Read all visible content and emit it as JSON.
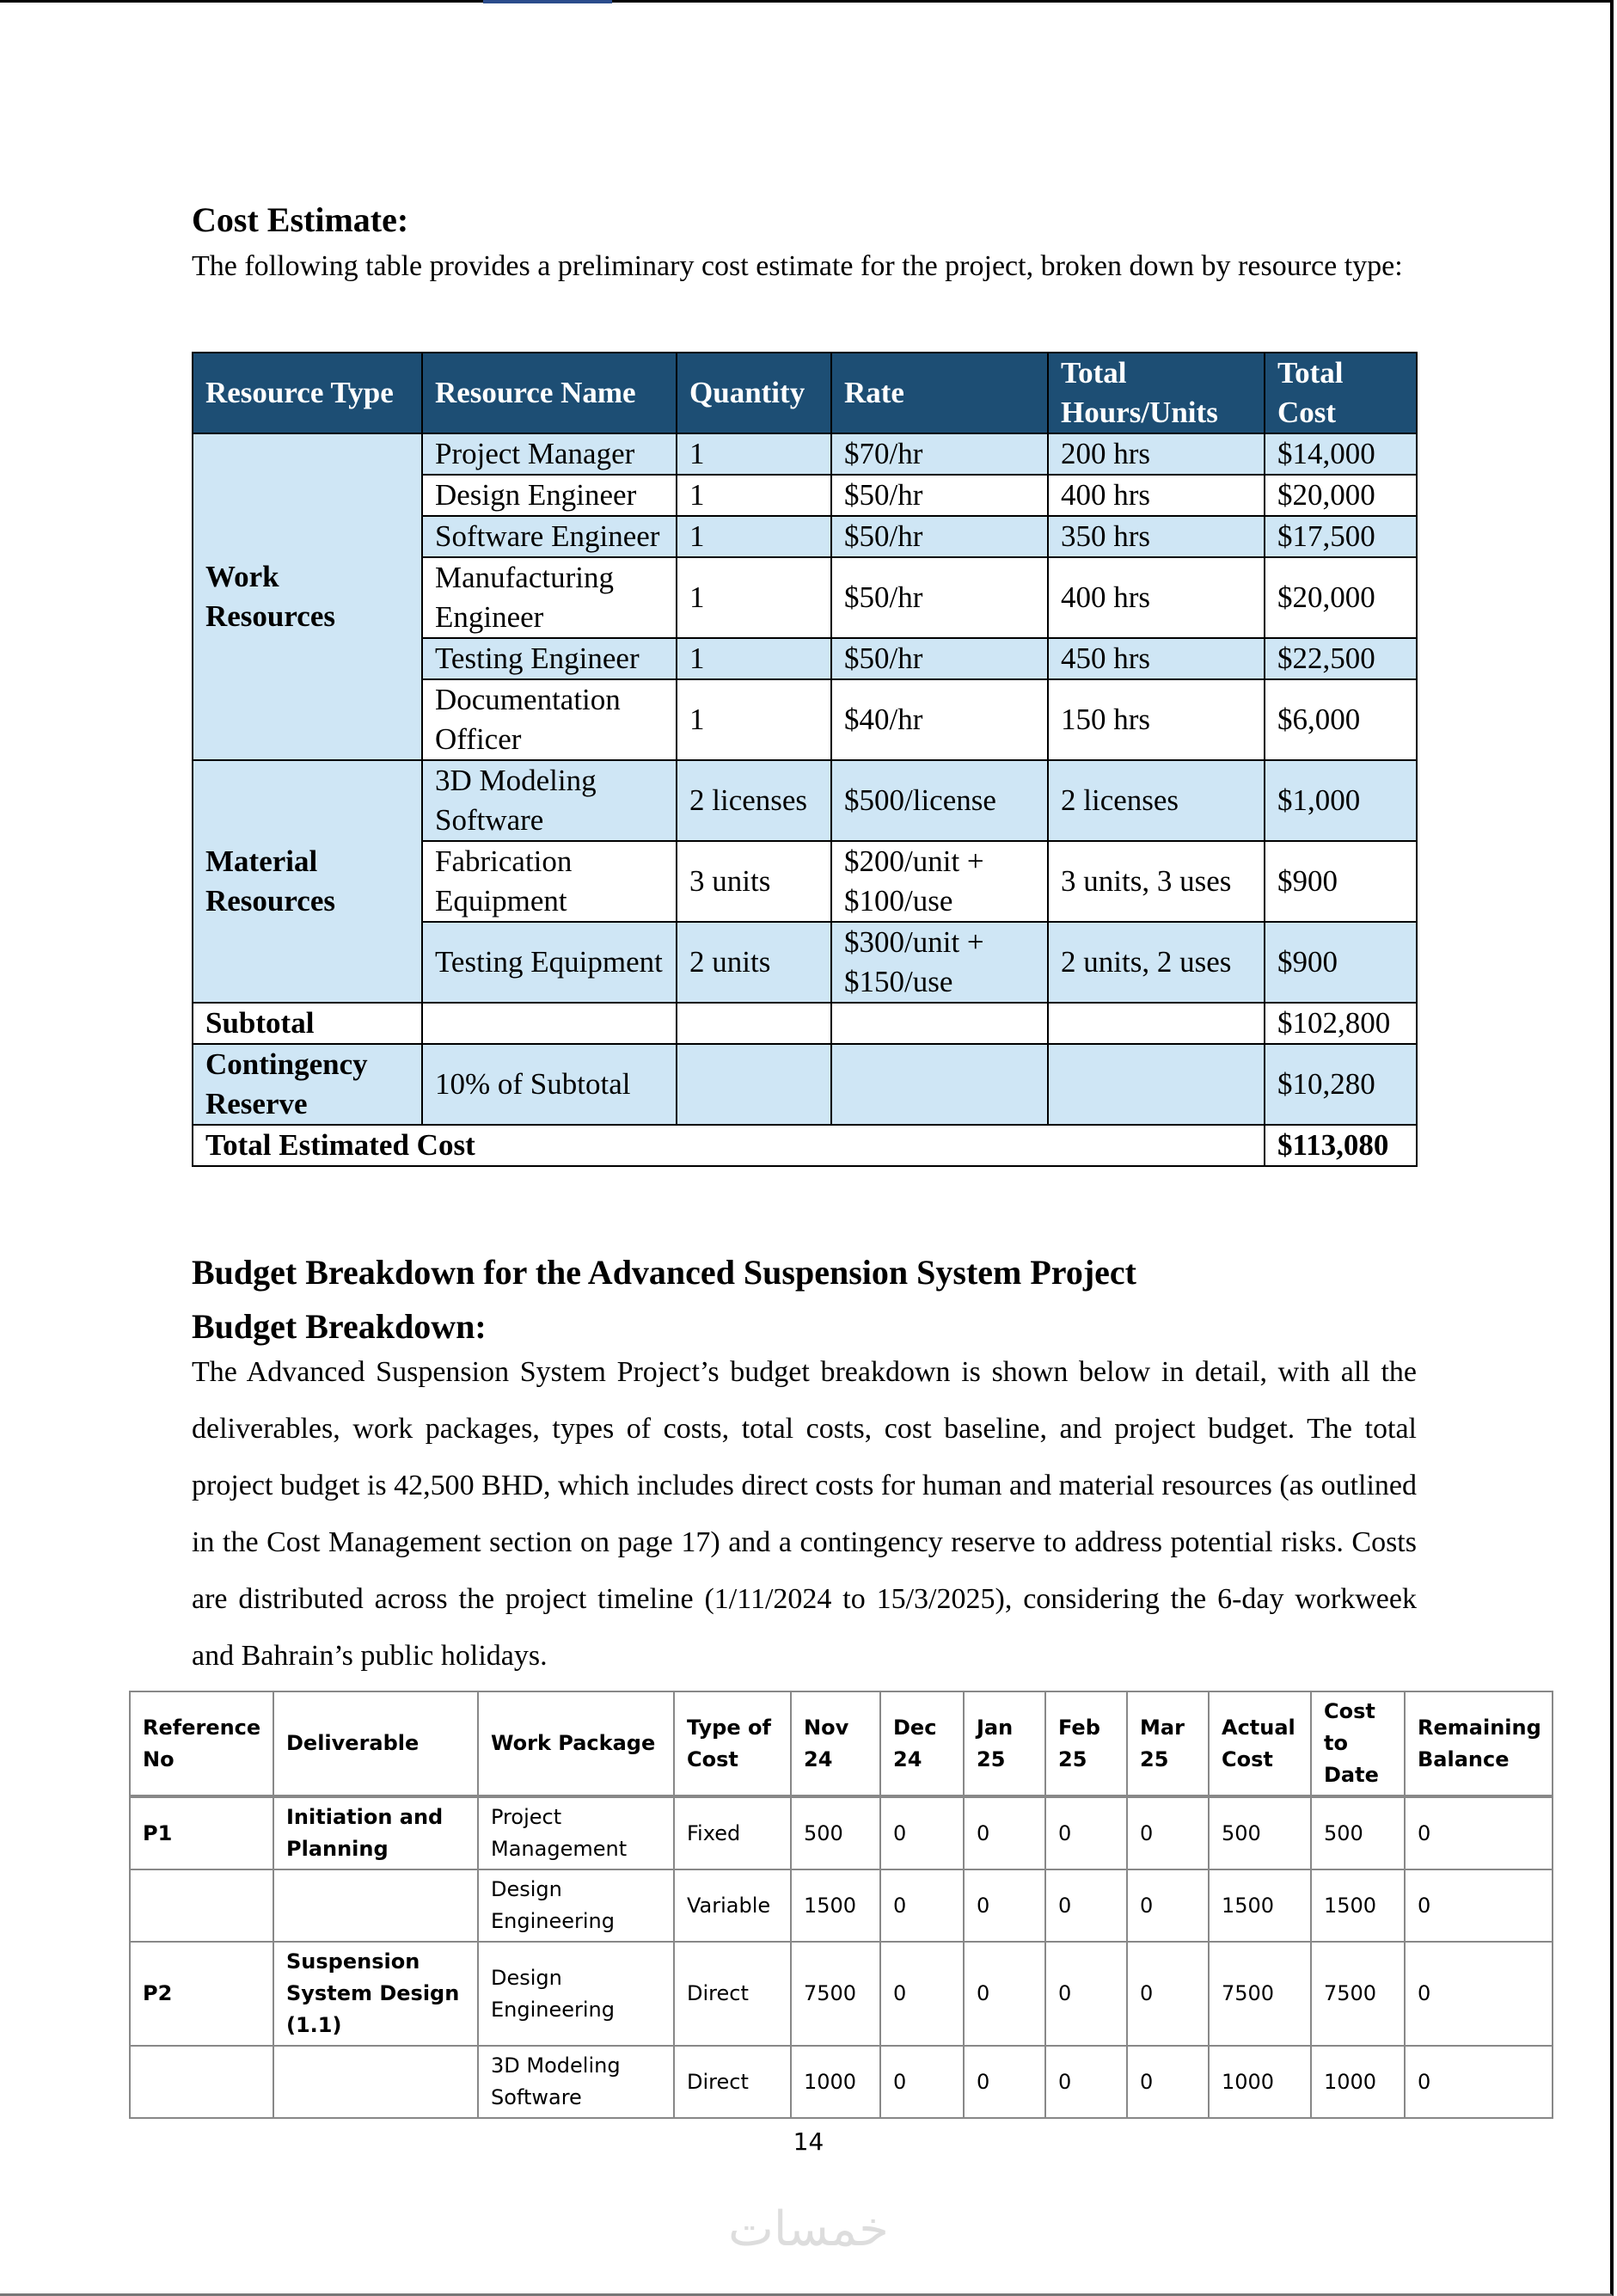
{
  "cost_estimate": {
    "heading": "Cost Estimate:",
    "intro": "The following table provides a preliminary cost estimate for the project, broken down by resource type:",
    "table": {
      "headers": [
        "Resource Type",
        "Resource Name",
        "Quantity",
        "Rate",
        "Total Hours/Units",
        "Total Cost"
      ],
      "groups": [
        {
          "type": "Work Resources",
          "rows": [
            [
              "Project Manager",
              "1",
              "$70/hr",
              "200 hrs",
              "$14,000"
            ],
            [
              "Design Engineer",
              "1",
              "$50/hr",
              "400 hrs",
              "$20,000"
            ],
            [
              "Software Engineer",
              "1",
              "$50/hr",
              "350 hrs",
              "$17,500"
            ],
            [
              "Manufacturing Engineer",
              "1",
              "$50/hr",
              "400 hrs",
              "$20,000"
            ],
            [
              "Testing Engineer",
              "1",
              "$50/hr",
              "450 hrs",
              "$22,500"
            ],
            [
              "Documentation Officer",
              "1",
              "$40/hr",
              "150 hrs",
              "$6,000"
            ]
          ]
        },
        {
          "type": "Material Resources",
          "rows": [
            [
              "3D Modeling Software",
              "2 licenses",
              "$500/license",
              "2 licenses",
              "$1,000"
            ],
            [
              "Fabrication Equipment",
              "3 units",
              "$200/unit + $100/use",
              "3 units, 3 uses",
              "$900"
            ],
            [
              "Testing Equipment",
              "2 units",
              "$300/unit + $150/use",
              "2 units, 2 uses",
              "$900"
            ]
          ]
        }
      ],
      "subtotal": {
        "label": "Subtotal",
        "total": "$102,800"
      },
      "contingency": {
        "label": "Contingency Reserve",
        "name": "10% of Subtotal",
        "total": "$10,280"
      },
      "grand_total": {
        "label": "Total Estimated Cost",
        "total": "$113,080"
      }
    }
  },
  "budget": {
    "title": "Budget Breakdown for the Advanced Suspension System Project",
    "heading": "Budget Breakdown:",
    "paragraph": "The Advanced Suspension System Project’s budget breakdown is shown below in detail, with all the deliverables, work packages, types of costs, total costs, cost baseline, and project budget. The total project budget is 42,500 BHD, which includes direct costs for human and material resources (as outlined in the Cost Management section on page 17) and a contingency reserve to address potential risks. Costs are distributed across the project timeline (1/11/2024 to 15/3/2025), considering the 6-day workweek and Bahrain’s public holidays.",
    "table": {
      "headers": [
        "Reference No",
        "Deliverable",
        "Work Package",
        "Type of Cost",
        "Nov 24",
        "Dec 24",
        "Jan 25",
        "Feb 25",
        "Mar 25",
        "Actual Cost",
        "Cost to Date",
        "Remaining Balance"
      ],
      "rows": [
        [
          "P1",
          "Initiation and Planning",
          "Project Management",
          "Fixed",
          "500",
          "0",
          "0",
          "0",
          "0",
          "500",
          "500",
          "0"
        ],
        [
          null,
          null,
          "Design Engineering",
          "Variable",
          "1500",
          "0",
          "0",
          "0",
          "0",
          "1500",
          "1500",
          "0"
        ],
        [
          "P2",
          "Suspension System Design (1.1)",
          "Design Engineering",
          "Direct",
          "7500",
          "0",
          "0",
          "0",
          "0",
          "7500",
          "7500",
          "0"
        ],
        [
          null,
          null,
          "3D Modeling Software",
          "Direct",
          "1000",
          "0",
          "0",
          "0",
          "0",
          "1000",
          "1000",
          "0"
        ]
      ]
    }
  },
  "footer": {
    "page_number": "14",
    "watermark": "خمسات"
  }
}
